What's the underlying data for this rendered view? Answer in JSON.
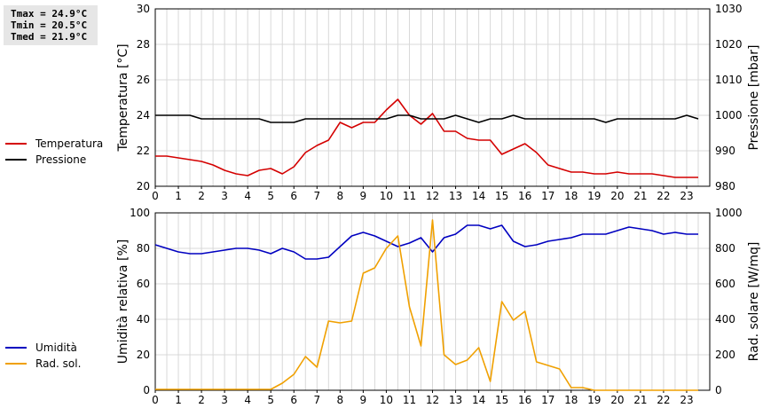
{
  "stats": {
    "tmax": "Tmax = 24.9°C",
    "tmin": "Tmin = 20.5°C",
    "tmed": "Tmed = 21.9°C"
  },
  "legend_top": [
    {
      "label": "Temperatura",
      "color": "#d40000"
    },
    {
      "label": "Pressione",
      "color": "#000000"
    }
  ],
  "legend_bottom": [
    {
      "label": "Umidità",
      "color": "#0000c0"
    },
    {
      "label": "Rad. sol.",
      "color": "#f0a000"
    }
  ],
  "chart_data": [
    {
      "type": "line",
      "x_ticks": [
        0,
        1,
        2,
        3,
        4,
        5,
        6,
        7,
        8,
        9,
        10,
        11,
        12,
        13,
        14,
        15,
        16,
        17,
        18,
        19,
        20,
        21,
        22,
        23
      ],
      "xlim": [
        0,
        24
      ],
      "ylabel": "Temperatura [°C]",
      "ylim": [
        20,
        30
      ],
      "y_ticks": [
        20,
        22,
        24,
        26,
        28,
        30
      ],
      "y2label": "Pressione [mbar]",
      "y2lim": [
        980,
        1030
      ],
      "y2_ticks": [
        980,
        990,
        1000,
        1010,
        1020,
        1030
      ],
      "grid": true,
      "series": [
        {
          "name": "Temperatura",
          "axis": "left",
          "color": "#d40000",
          "x": [
            0,
            0.5,
            1,
            1.5,
            2,
            2.5,
            3,
            3.5,
            4,
            4.5,
            5,
            5.5,
            6,
            6.5,
            7,
            7.5,
            8,
            8.5,
            9,
            9.5,
            10,
            10.5,
            11,
            11.5,
            12,
            12.5,
            13,
            13.5,
            14,
            14.5,
            15,
            15.5,
            16,
            16.5,
            17,
            17.5,
            18,
            18.5,
            19,
            19.5,
            20,
            20.5,
            21,
            21.5,
            22,
            22.5,
            23,
            23.5
          ],
          "y": [
            21.7,
            21.7,
            21.6,
            21.5,
            21.4,
            21.2,
            20.9,
            20.7,
            20.6,
            20.9,
            21.0,
            20.7,
            21.1,
            21.9,
            22.3,
            22.6,
            23.6,
            23.3,
            23.6,
            23.6,
            24.3,
            24.9,
            24.0,
            23.5,
            24.1,
            23.1,
            23.1,
            22.7,
            22.6,
            22.6,
            21.8,
            22.1,
            22.4,
            21.9,
            21.2,
            21.0,
            20.8,
            20.8,
            20.7,
            20.7,
            20.8,
            20.7,
            20.7,
            20.7,
            20.6,
            20.5,
            20.5,
            20.5
          ]
        },
        {
          "name": "Pressione",
          "axis": "right",
          "color": "#000000",
          "x": [
            0,
            0.5,
            1,
            1.5,
            2,
            2.5,
            3,
            3.5,
            4,
            4.5,
            5,
            5.5,
            6,
            6.5,
            7,
            7.5,
            8,
            8.5,
            9,
            9.5,
            10,
            10.5,
            11,
            11.5,
            12,
            12.5,
            13,
            13.5,
            14,
            14.5,
            15,
            15.5,
            16,
            16.5,
            17,
            17.5,
            18,
            18.5,
            19,
            19.5,
            20,
            20.5,
            21,
            21.5,
            22,
            22.5,
            23,
            23.5
          ],
          "y": [
            1000,
            1000,
            1000,
            1000,
            999,
            999,
            999,
            999,
            999,
            999,
            998,
            998,
            998,
            999,
            999,
            999,
            999,
            999,
            999,
            999,
            999,
            1000,
            1000,
            999,
            999,
            999,
            1000,
            999,
            998,
            999,
            999,
            1000,
            999,
            999,
            999,
            999,
            999,
            999,
            999,
            998,
            999,
            999,
            999,
            999,
            999,
            999,
            1000,
            999
          ]
        }
      ]
    },
    {
      "type": "line",
      "x_ticks": [
        0,
        1,
        2,
        3,
        4,
        5,
        6,
        7,
        8,
        9,
        10,
        11,
        12,
        13,
        14,
        15,
        16,
        17,
        18,
        19,
        20,
        21,
        22,
        23
      ],
      "xlim": [
        0,
        24
      ],
      "ylabel": "Umidità relativa [%]",
      "ylim": [
        0,
        100
      ],
      "y_ticks": [
        0,
        20,
        40,
        60,
        80,
        100
      ],
      "y2label": "Rad. solare [W/mq]",
      "y2lim": [
        0,
        1000
      ],
      "y2_ticks": [
        0,
        200,
        400,
        600,
        800,
        1000
      ],
      "grid": true,
      "series": [
        {
          "name": "Umidità",
          "axis": "left",
          "color": "#0000c0",
          "x": [
            0,
            0.5,
            1,
            1.5,
            2,
            2.5,
            3,
            3.5,
            4,
            4.5,
            5,
            5.5,
            6,
            6.5,
            7,
            7.5,
            8,
            8.5,
            9,
            9.5,
            10,
            10.5,
            11,
            11.5,
            12,
            12.5,
            13,
            13.5,
            14,
            14.5,
            15,
            15.5,
            16,
            16.5,
            17,
            17.5,
            18,
            18.5,
            19,
            19.5,
            20,
            20.5,
            21,
            21.5,
            22,
            22.5,
            23,
            23.5
          ],
          "y": [
            82,
            80,
            78,
            77,
            77,
            78,
            79,
            80,
            80,
            79,
            77,
            80,
            78,
            74,
            74,
            75,
            81,
            87,
            89,
            87,
            84,
            81,
            83,
            86,
            78,
            86,
            88,
            93,
            93,
            91,
            93,
            84,
            81,
            82,
            84,
            85,
            86,
            88,
            88,
            88,
            90,
            92,
            91,
            90,
            88,
            89,
            88,
            88
          ]
        },
        {
          "name": "Rad. sol.",
          "axis": "right",
          "color": "#f0a000",
          "x": [
            0,
            0.5,
            1,
            1.5,
            2,
            2.5,
            3,
            3.5,
            4,
            4.5,
            5,
            5.5,
            6,
            6.5,
            7,
            7.5,
            8,
            8.5,
            9,
            9.5,
            10,
            10.5,
            11,
            11.5,
            12,
            12.5,
            13,
            13.5,
            14,
            14.5,
            15,
            15.5,
            16,
            16.5,
            17,
            17.5,
            18,
            18.5,
            19,
            19.5,
            20,
            20.5,
            21,
            21.5,
            22,
            22.5,
            23,
            23.5
          ],
          "y": [
            5,
            5,
            5,
            5,
            5,
            5,
            5,
            5,
            5,
            5,
            5,
            40,
            90,
            190,
            130,
            390,
            380,
            390,
            660,
            690,
            800,
            870,
            470,
            250,
            960,
            200,
            145,
            170,
            240,
            50,
            500,
            395,
            445,
            160,
            140,
            120,
            15,
            15,
            0,
            0,
            0,
            0,
            0,
            0,
            0,
            0,
            0,
            0
          ]
        }
      ]
    }
  ]
}
